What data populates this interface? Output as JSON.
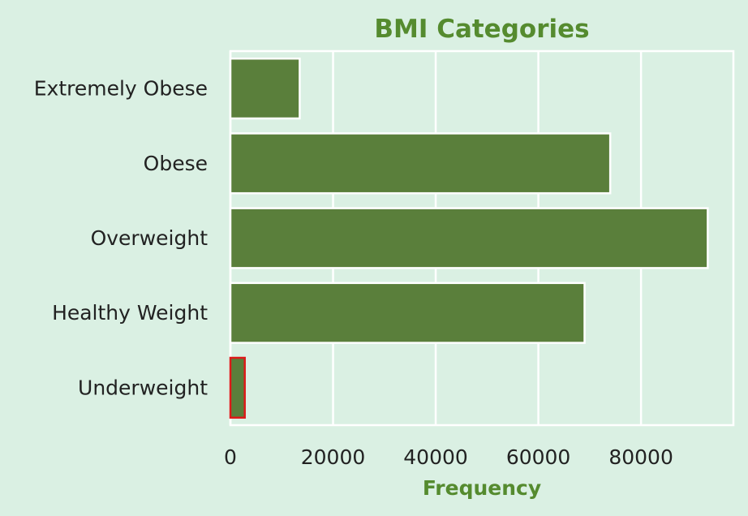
{
  "chart_data": {
    "type": "bar",
    "orientation": "horizontal",
    "title": "BMI Categories",
    "xlabel": "Frequency",
    "ylabel": "",
    "categories": [
      "Extremely Obese",
      "Obese",
      "Overweight",
      "Healthy Weight",
      "Underweight"
    ],
    "values": [
      13500,
      74000,
      93000,
      69000,
      2800
    ],
    "xlim": [
      0,
      98000
    ],
    "xticks": [
      0,
      20000,
      40000,
      60000,
      80000
    ],
    "xtick_labels": [
      "0",
      "20000",
      "40000",
      "60000",
      "80000"
    ],
    "grid": true,
    "highlighted_category": "Underweight",
    "colors": {
      "background": "#daf0e3",
      "plot_background": "#daf0e3",
      "bar": "#5a7f3b",
      "bar_edge": "#ffffff",
      "highlight_edge": "#dd1a1a",
      "grid": "#ffffff",
      "title": "#558b2f",
      "axis_title": "#558b2f",
      "text": "#222222"
    }
  }
}
